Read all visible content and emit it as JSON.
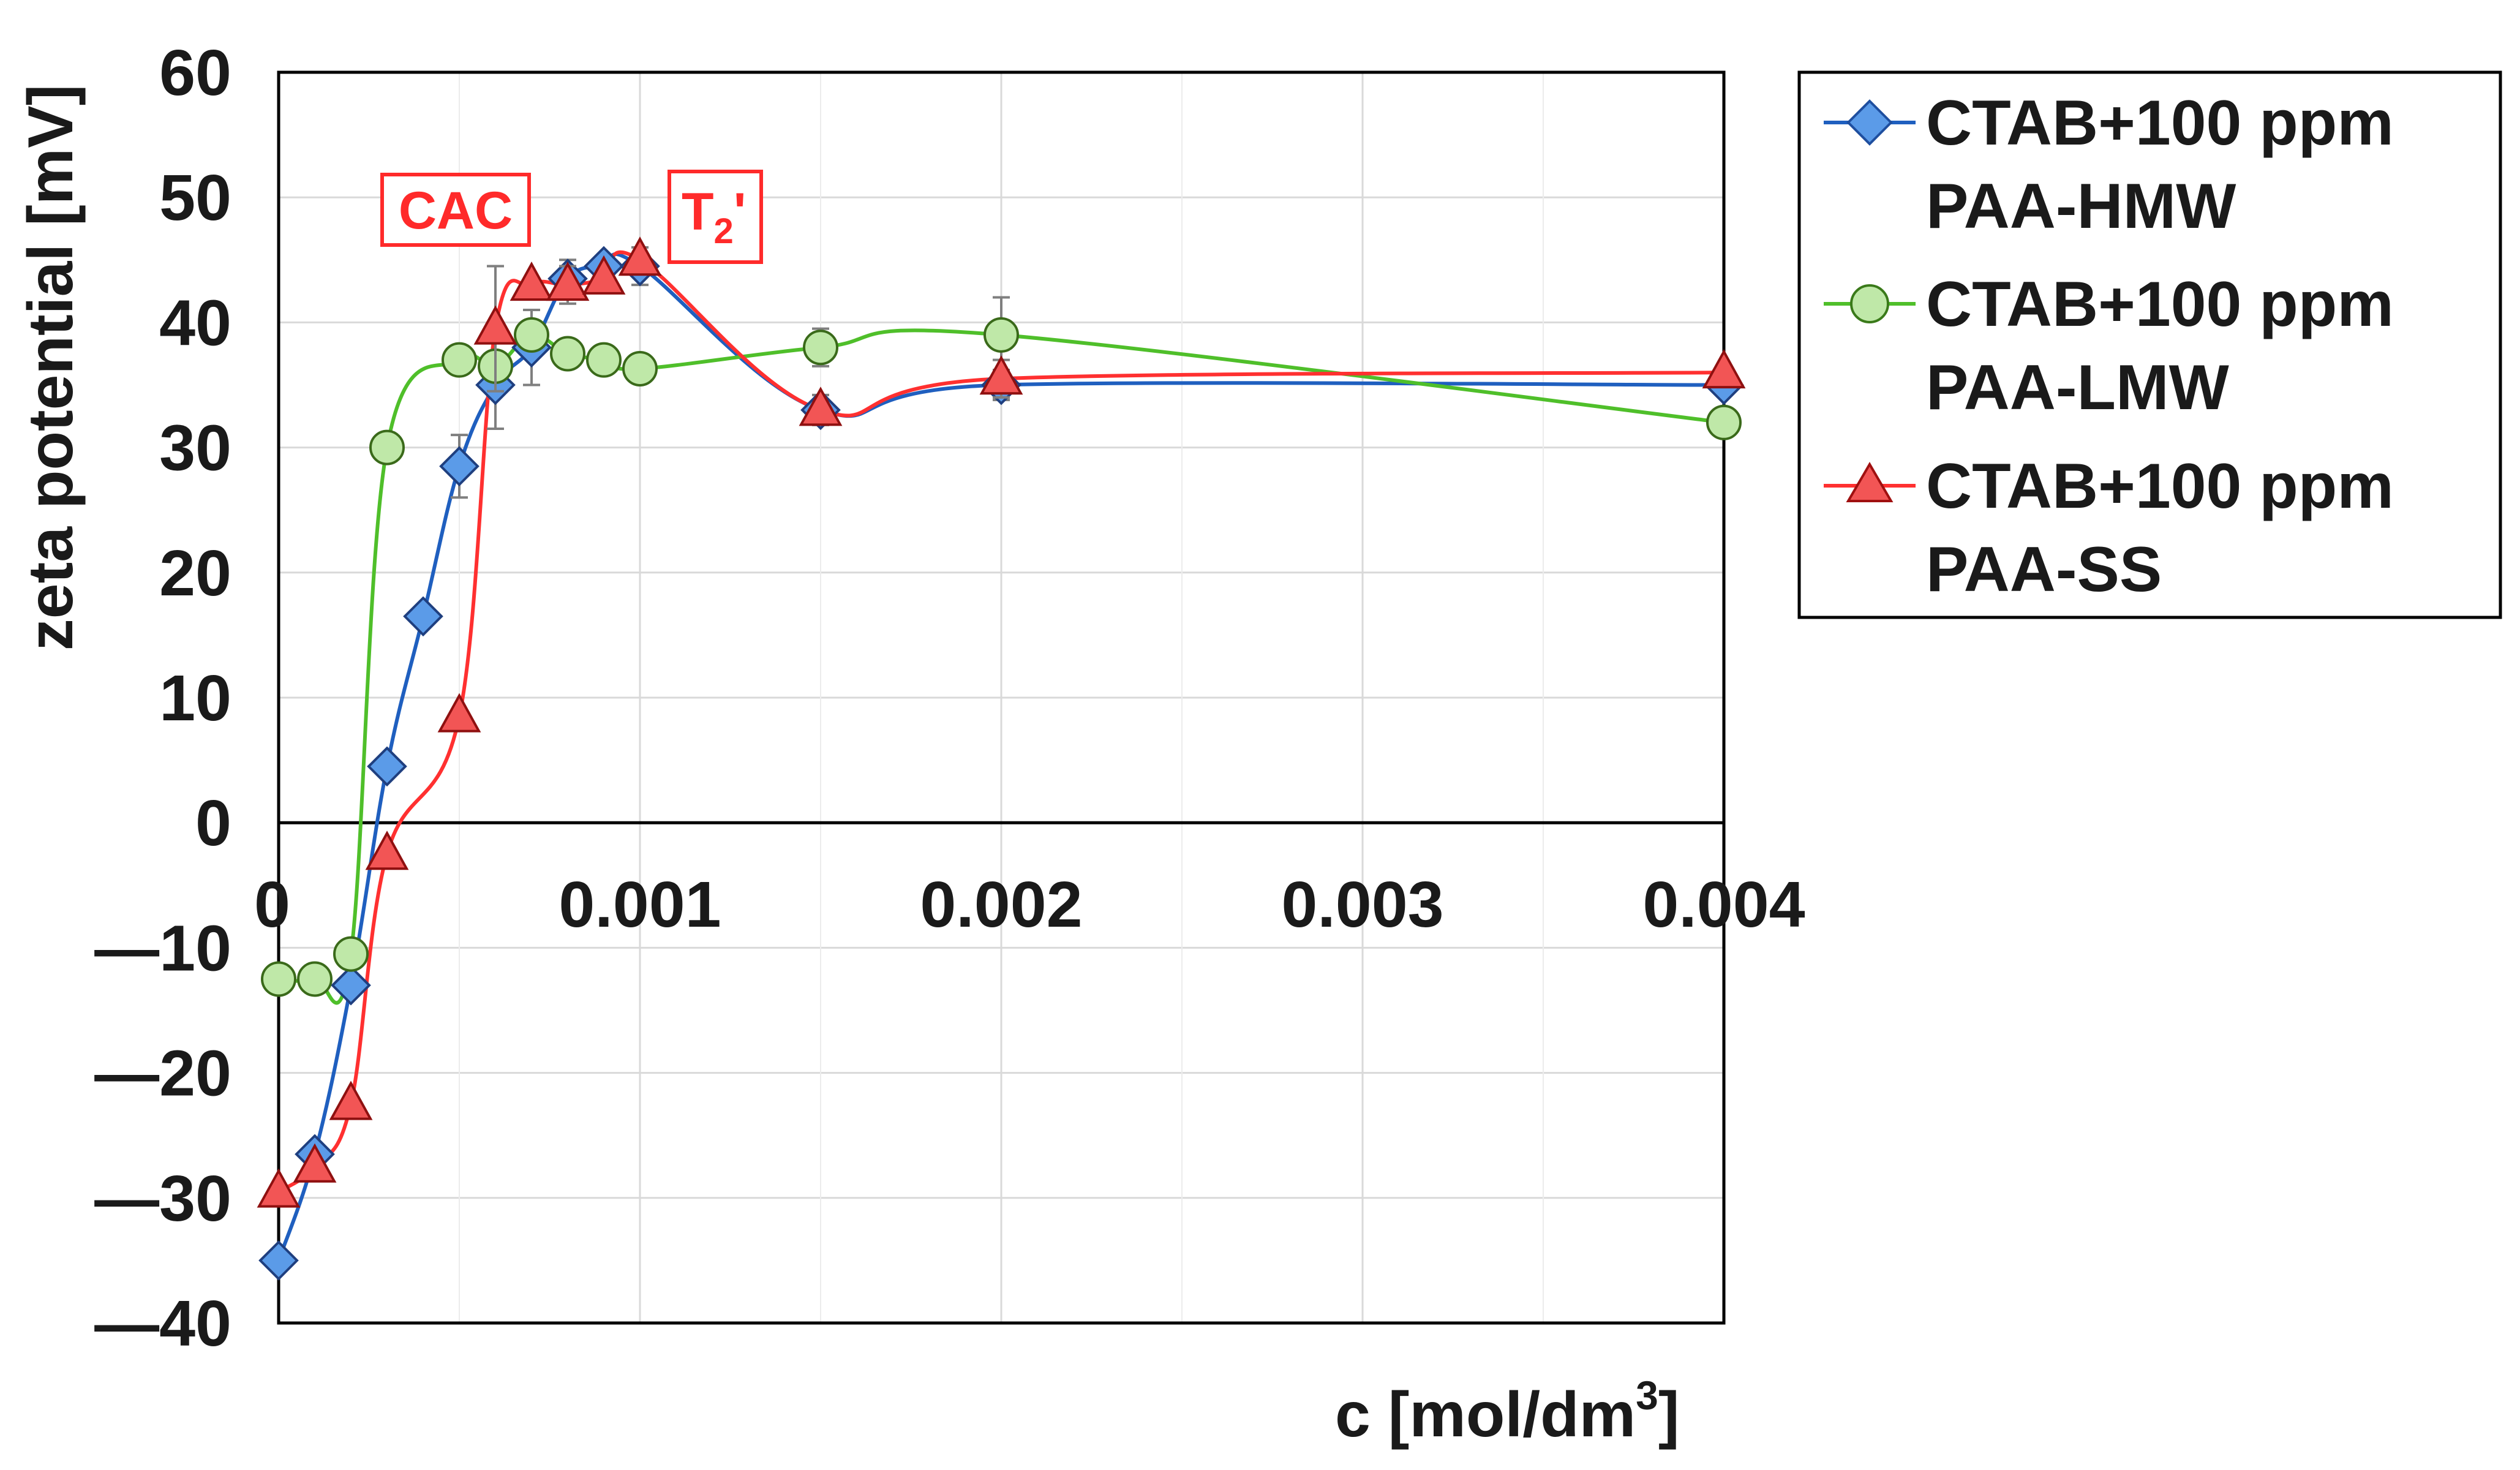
{
  "chart_data": {
    "type": "line",
    "xlabel": "c [mol/dm",
    "xlabel_sup": "3",
    "xlabel_end": "]",
    "ylabel": "zeta potential [mV]",
    "xlim": [
      0,
      0.004
    ],
    "ylim": [
      -40,
      60
    ],
    "x_ticks": [
      0,
      0.001,
      0.002,
      0.003,
      0.004
    ],
    "x_tick_labels": [
      "0",
      "0.001",
      "0.002",
      "0.003",
      "0.004"
    ],
    "y_ticks": [
      -40,
      -30,
      -20,
      -10,
      0,
      10,
      20,
      30,
      40,
      50,
      60
    ],
    "y_tick_labels": [
      "—40",
      "—30",
      "—20",
      "—10",
      "0",
      "10",
      "20",
      "30",
      "40",
      "50",
      "60"
    ],
    "grid": true,
    "legend_position": "right",
    "annotations": [
      {
        "text": "CAC",
        "color": "#ff2a2a"
      },
      {
        "text": "T",
        "sub": "2",
        "suffix": "'",
        "color": "#ff2a2a"
      }
    ],
    "series": [
      {
        "name_line1": "CTAB+100 ppm",
        "name_line2": "PAA-HMW",
        "color": "#1f5fbf",
        "marker_fill": "#5b9be8",
        "marker": "diamond",
        "x": [
          0,
          0.0001,
          0.0002,
          0.0003,
          0.0004,
          0.0005,
          0.0006,
          0.0007,
          0.0008,
          0.0009,
          0.001,
          0.0015,
          0.002,
          0.004
        ],
        "y": [
          -35,
          -26.5,
          -13,
          4.5,
          16.5,
          28.5,
          35,
          38,
          43.5,
          44.5,
          44.5,
          33,
          35,
          35
        ],
        "err": [
          0,
          0,
          0,
          0,
          0,
          2.5,
          3.5,
          3,
          1.5,
          0,
          1.5,
          1.2,
          1.2,
          0
        ]
      },
      {
        "name_line1": "CTAB+100 ppm",
        "name_line2": "PAA-LMW",
        "color": "#4fbf2a",
        "marker_fill": "#bfe8a8",
        "marker": "circle",
        "x": [
          0,
          0.0001,
          0.0002,
          0.0003,
          0.0005,
          0.0006,
          0.0007,
          0.0008,
          0.0009,
          0.001,
          0.0015,
          0.002,
          0.004
        ],
        "y": [
          -12.5,
          -12.5,
          -10.5,
          30,
          37,
          36.5,
          39,
          37.5,
          37,
          36.3,
          38,
          39,
          32
        ],
        "err": [
          0,
          0,
          0,
          0,
          0,
          0,
          0,
          0,
          0,
          0,
          1.5,
          3,
          0
        ]
      },
      {
        "name_line1": "CTAB+100 ppm",
        "name_line2": "PAA-SS",
        "color": "#ff3030",
        "marker_fill": "#f25555",
        "marker": "triangle",
        "x": [
          0,
          0.0001,
          0.0002,
          0.0003,
          0.0005,
          0.0006,
          0.0007,
          0.0008,
          0.0009,
          0.001,
          0.0015,
          0.002,
          0.004
        ],
        "y": [
          -29.5,
          -27.5,
          -22.5,
          -2.5,
          8.5,
          39.5,
          43,
          43,
          43.5,
          45,
          33,
          35.5,
          36
        ],
        "err": [
          0,
          0,
          0,
          0,
          0,
          5,
          0,
          1.5,
          0,
          0,
          0,
          1.5,
          0
        ]
      }
    ]
  }
}
